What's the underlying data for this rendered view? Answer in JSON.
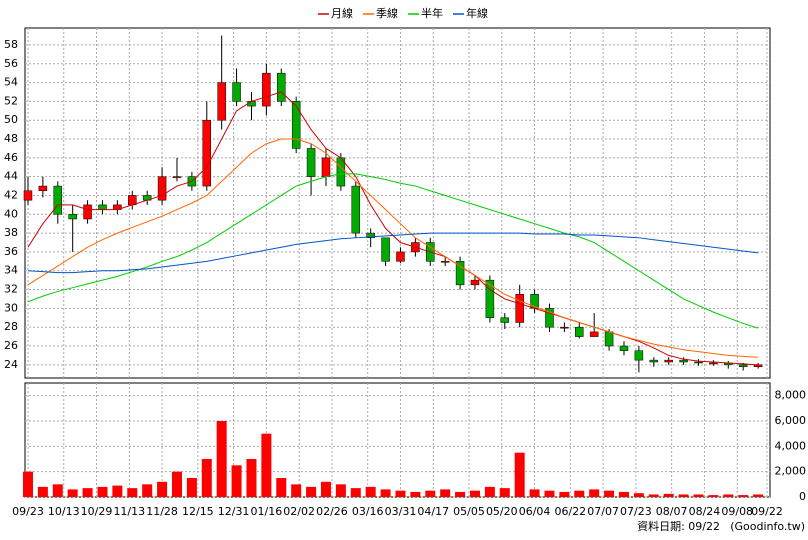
{
  "chart_data": {
    "type": "candlestick",
    "x": [
      0,
      5,
      10,
      15,
      20,
      25,
      30,
      35,
      40,
      45,
      50,
      55,
      60,
      65,
      70,
      75,
      80,
      85,
      90,
      95,
      100,
      105,
      110,
      115,
      120,
      125,
      130,
      135,
      140,
      145,
      150,
      155,
      160,
      165,
      170,
      175,
      180,
      185,
      190,
      195,
      200,
      205,
      210,
      215,
      220,
      225,
      230,
      235,
      240,
      245
    ],
    "open": [
      41.5,
      42.5,
      43,
      40,
      39.5,
      41,
      40.5,
      41,
      42,
      41.5,
      44,
      44,
      43,
      50,
      54,
      52,
      51.5,
      55,
      52,
      47,
      44,
      46,
      43,
      38,
      37.5,
      35,
      36,
      37,
      35,
      35,
      32.5,
      33,
      29,
      28.5,
      31.5,
      30,
      28,
      28,
      27,
      27.5,
      26,
      25.5,
      24.5,
      24.3,
      24.5,
      24.3,
      24.2,
      24.2,
      24,
      23.8
    ],
    "high": [
      44,
      44,
      43.5,
      41,
      41.5,
      41.5,
      41.5,
      42.5,
      42.5,
      45,
      46,
      44.5,
      52,
      59,
      55.5,
      53,
      56,
      55.5,
      52.5,
      47.5,
      47,
      46.5,
      43.5,
      38.5,
      37.5,
      36.5,
      37.5,
      37.5,
      35.5,
      35.5,
      33.5,
      33.5,
      29.5,
      32.5,
      32,
      30.5,
      28.5,
      28.5,
      29.5,
      27.8,
      26.5,
      26,
      24.8,
      24.8,
      24.8,
      24.6,
      24.5,
      24.4,
      24.2,
      24.2
    ],
    "low": [
      41,
      41.8,
      39,
      36,
      39,
      40,
      40,
      40.5,
      41,
      41,
      43.5,
      42.5,
      42.5,
      49,
      51.5,
      50,
      50.5,
      51.5,
      46.5,
      42,
      43,
      42.5,
      37.5,
      36.5,
      34.5,
      34.8,
      35.5,
      34.5,
      34.5,
      32,
      32,
      28.5,
      27.8,
      28,
      29.5,
      27.5,
      27.5,
      26.8,
      27,
      25.5,
      25,
      23.2,
      23.8,
      24,
      24,
      23.9,
      23.9,
      23.6,
      23.4,
      23.6
    ],
    "close": [
      42.5,
      43,
      40,
      39.5,
      41,
      40.5,
      41,
      42,
      41.5,
      44,
      44,
      43,
      50,
      54,
      52,
      51.5,
      55,
      52,
      47,
      44,
      46,
      43,
      38,
      37.5,
      35,
      36,
      37,
      35,
      35,
      32.5,
      33,
      29,
      28.5,
      31.5,
      30,
      28,
      28,
      27,
      27.5,
      26,
      25.5,
      24.5,
      24.3,
      24.5,
      24.3,
      24.2,
      24.2,
      24,
      23.8,
      24
    ],
    "up_color": "#ff0000",
    "down_color": "#00aa00",
    "series": [
      {
        "name": "月線",
        "color": "#cc0000",
        "values": [
          36.5,
          39,
          41,
          41,
          40.5,
          40.5,
          40.5,
          41,
          41.5,
          42,
          43,
          43.5,
          45,
          48,
          51,
          52,
          52.5,
          53,
          51.5,
          49,
          47,
          46,
          44,
          41,
          38.5,
          37,
          36.5,
          36,
          35.5,
          34.5,
          33.5,
          32,
          31,
          30.5,
          30,
          29.5,
          29,
          28.5,
          28,
          27.5,
          27,
          26.5,
          25.8,
          25,
          24.6,
          24.4,
          24.3,
          24.2,
          24.1,
          24
        ]
      },
      {
        "name": "季線",
        "color": "#ff6600",
        "values": [
          32.5,
          33.5,
          34.5,
          35.5,
          36.5,
          37.3,
          38,
          38.6,
          39.2,
          39.8,
          40.5,
          41.2,
          42,
          43.5,
          45,
          46.5,
          47.5,
          48,
          48,
          47.5,
          46.5,
          45,
          43.5,
          42,
          40.5,
          39,
          37.5,
          36.5,
          35.5,
          34.5,
          33.5,
          32.5,
          31.5,
          30.8,
          30.2,
          29.6,
          29,
          28.5,
          28,
          27.5,
          27,
          26.6,
          26.2,
          25.9,
          25.6,
          25.4,
          25.2,
          25,
          24.9,
          24.8
        ]
      },
      {
        "name": "半年",
        "color": "#00cc00",
        "values": [
          30.7,
          31.3,
          31.8,
          32.2,
          32.6,
          33,
          33.4,
          33.9,
          34.4,
          35,
          35.5,
          36.2,
          37,
          38,
          39,
          40,
          41,
          42,
          43,
          43.5,
          44,
          44.3,
          44.3,
          44,
          43.7,
          43.3,
          43,
          42.5,
          42,
          41.5,
          41,
          40.5,
          40,
          39.5,
          39,
          38.5,
          38,
          37.6,
          37,
          36,
          35,
          34,
          33,
          32,
          31,
          30.3,
          29.6,
          29,
          28.4,
          27.9
        ]
      },
      {
        "name": "年線",
        "color": "#0055cc",
        "values": [
          34,
          33.9,
          33.8,
          33.8,
          33.9,
          34,
          34,
          34.1,
          34.2,
          34.4,
          34.6,
          34.8,
          35,
          35.3,
          35.6,
          35.9,
          36.2,
          36.5,
          36.8,
          37,
          37.2,
          37.4,
          37.5,
          37.6,
          37.7,
          37.8,
          37.9,
          38,
          38,
          38,
          38,
          38,
          38,
          38,
          37.9,
          37.9,
          37.9,
          37.8,
          37.8,
          37.7,
          37.6,
          37.5,
          37.3,
          37.1,
          36.9,
          36.7,
          36.5,
          36.3,
          36.1,
          35.9
        ]
      }
    ],
    "volume": [
      2000,
      800,
      1000,
      600,
      700,
      800,
      900,
      700,
      1000,
      1200,
      2000,
      1500,
      3000,
      6000,
      2500,
      3000,
      5000,
      1500,
      1000,
      800,
      1200,
      1000,
      700,
      800,
      600,
      500,
      400,
      500,
      600,
      400,
      500,
      800,
      700,
      3500,
      600,
      500,
      400,
      500,
      600,
      500,
      400,
      300,
      200,
      250,
      200,
      200,
      150,
      200,
      150,
      200
    ],
    "volume_color": "#ff0000",
    "xlim": [
      -1,
      249
    ],
    "xticks": [
      {
        "value": 0,
        "label": "09/23"
      },
      {
        "value": 12,
        "label": "10/13"
      },
      {
        "value": 23,
        "label": "10/29"
      },
      {
        "value": 34,
        "label": "11/13"
      },
      {
        "value": 45,
        "label": "11/28"
      },
      {
        "value": 57,
        "label": "12/15"
      },
      {
        "value": 69,
        "label": "12/31"
      },
      {
        "value": 80,
        "label": "01/16"
      },
      {
        "value": 91,
        "label": "02/02"
      },
      {
        "value": 102,
        "label": "02/26"
      },
      {
        "value": 114,
        "label": "03/16"
      },
      {
        "value": 125,
        "label": "03/31"
      },
      {
        "value": 136,
        "label": "04/17"
      },
      {
        "value": 148,
        "label": "05/05"
      },
      {
        "value": 159,
        "label": "05/20"
      },
      {
        "value": 170,
        "label": "06/04"
      },
      {
        "value": 182,
        "label": "06/22"
      },
      {
        "value": 193,
        "label": "07/07"
      },
      {
        "value": 204,
        "label": "07/23"
      },
      {
        "value": 216,
        "label": "08/07"
      },
      {
        "value": 227,
        "label": "08/24"
      },
      {
        "value": 238,
        "label": "09/08"
      },
      {
        "value": 248,
        "label": "09/22"
      }
    ],
    "ylim": [
      22.6,
      59.8
    ],
    "yticks": [
      24,
      26,
      28,
      30,
      32,
      34,
      36,
      38,
      40,
      42,
      44,
      46,
      48,
      50,
      52,
      54,
      56,
      58
    ],
    "y2lim": [
      0,
      9000
    ],
    "y2ticks": [
      0,
      {
        "value": 2000,
        "label": "2,000"
      },
      {
        "value": 4000,
        "label": "4,000"
      },
      {
        "value": 6000,
        "label": "6,000"
      },
      {
        "value": 8000,
        "label": "8,000"
      }
    ],
    "grid": true,
    "footer": "資料日期: 09/22",
    "source": "(Goodinfo.tw)"
  }
}
